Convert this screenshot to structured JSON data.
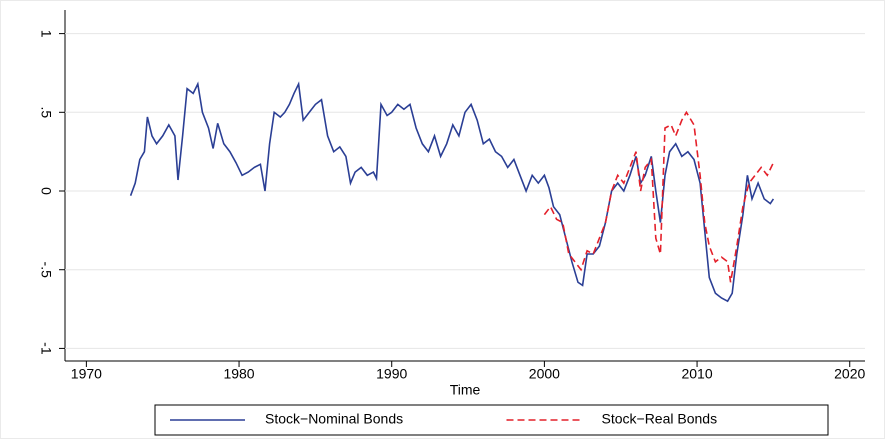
{
  "chart_data": {
    "type": "line",
    "x_label": "Time",
    "xlim": [
      1968.6,
      2021
    ],
    "xticks": [
      1970,
      1980,
      1990,
      2000,
      2010,
      2020
    ],
    "ylim": [
      -1.08,
      1.15
    ],
    "yticks": [
      {
        "value": -1,
        "label": "-1"
      },
      {
        "value": -0.5,
        "label": "-.5"
      },
      0,
      {
        "value": 0.5,
        "label": ".5"
      },
      1
    ],
    "grid": true,
    "legend": "bottom",
    "series": [
      {
        "name": "Stock−Nominal Bonds",
        "color": "#2b3f95",
        "dash": "solid",
        "x": [
          1972.9,
          1973.2,
          1973.5,
          1973.8,
          1974.0,
          1974.3,
          1974.6,
          1975.0,
          1975.4,
          1975.8,
          1976.0,
          1976.3,
          1976.6,
          1977.0,
          1977.3,
          1977.6,
          1978.0,
          1978.3,
          1978.6,
          1979.0,
          1979.4,
          1979.8,
          1980.2,
          1980.6,
          1981.0,
          1981.4,
          1981.7,
          1982.0,
          1982.3,
          1982.7,
          1983.0,
          1983.3,
          1983.6,
          1983.9,
          1984.2,
          1984.6,
          1985.0,
          1985.4,
          1985.8,
          1986.2,
          1986.6,
          1987.0,
          1987.3,
          1987.6,
          1988.0,
          1988.4,
          1988.8,
          1989.0,
          1989.3,
          1989.7,
          1990.0,
          1990.4,
          1990.8,
          1991.2,
          1991.6,
          1992.0,
          1992.4,
          1992.8,
          1993.2,
          1993.6,
          1994.0,
          1994.4,
          1994.8,
          1995.2,
          1995.6,
          1996.0,
          1996.4,
          1996.8,
          1997.2,
          1997.6,
          1998.0,
          1998.4,
          1998.8,
          1999.2,
          1999.6,
          2000.0,
          2000.3,
          2000.6,
          2001.0,
          2001.4,
          2001.8,
          2002.2,
          2002.5,
          2002.8,
          2003.2,
          2003.6,
          2004.0,
          2004.4,
          2004.8,
          2005.2,
          2005.6,
          2006.0,
          2006.3,
          2006.6,
          2007.0,
          2007.3,
          2007.6,
          2007.9,
          2008.2,
          2008.6,
          2009.0,
          2009.4,
          2009.8,
          2010.2,
          2010.5,
          2010.8,
          2011.2,
          2011.6,
          2012.0,
          2012.3,
          2012.6,
          2013.0,
          2013.3,
          2013.6,
          2014.0,
          2014.4,
          2014.8,
          2015.0
        ],
        "values": [
          -0.03,
          0.05,
          0.2,
          0.25,
          0.47,
          0.35,
          0.3,
          0.35,
          0.42,
          0.35,
          0.07,
          0.35,
          0.65,
          0.62,
          0.68,
          0.5,
          0.4,
          0.27,
          0.43,
          0.3,
          0.25,
          0.18,
          0.1,
          0.12,
          0.15,
          0.17,
          0.0,
          0.3,
          0.5,
          0.47,
          0.5,
          0.55,
          0.62,
          0.68,
          0.45,
          0.5,
          0.55,
          0.58,
          0.35,
          0.25,
          0.28,
          0.22,
          0.05,
          0.12,
          0.15,
          0.1,
          0.12,
          0.08,
          0.55,
          0.48,
          0.5,
          0.55,
          0.52,
          0.55,
          0.4,
          0.3,
          0.25,
          0.35,
          0.22,
          0.3,
          0.42,
          0.35,
          0.5,
          0.55,
          0.45,
          0.3,
          0.33,
          0.25,
          0.22,
          0.15,
          0.2,
          0.1,
          0.0,
          0.1,
          0.05,
          0.1,
          0.02,
          -0.1,
          -0.15,
          -0.3,
          -0.45,
          -0.58,
          -0.6,
          -0.4,
          -0.4,
          -0.35,
          -0.2,
          0.0,
          0.05,
          0.0,
          0.1,
          0.22,
          0.05,
          0.1,
          0.22,
          0.0,
          -0.2,
          0.1,
          0.25,
          0.3,
          0.22,
          0.25,
          0.2,
          0.05,
          -0.25,
          -0.55,
          -0.65,
          -0.68,
          -0.7,
          -0.65,
          -0.4,
          -0.15,
          0.1,
          -0.05,
          0.05,
          -0.05,
          -0.08,
          -0.05
        ]
      },
      {
        "name": "Stock−Real Bonds",
        "color": "#e4202a",
        "dash": "dashed",
        "x": [
          2000.0,
          2000.4,
          2000.8,
          2001.2,
          2001.6,
          2002.0,
          2002.4,
          2002.8,
          2003.2,
          2003.6,
          2004.0,
          2004.4,
          2004.8,
          2005.2,
          2005.6,
          2006.0,
          2006.3,
          2006.6,
          2007.0,
          2007.3,
          2007.6,
          2007.9,
          2008.3,
          2008.6,
          2009.0,
          2009.3,
          2009.8,
          2010.2,
          2010.5,
          2010.8,
          2011.2,
          2011.6,
          2012.0,
          2012.2,
          2012.6,
          2013.0,
          2013.4,
          2013.8,
          2014.2,
          2014.6,
          2015.0
        ],
        "values": [
          -0.15,
          -0.1,
          -0.18,
          -0.2,
          -0.4,
          -0.45,
          -0.5,
          -0.38,
          -0.4,
          -0.3,
          -0.2,
          0.0,
          0.1,
          0.05,
          0.15,
          0.25,
          0.0,
          0.15,
          0.2,
          -0.3,
          -0.4,
          0.4,
          0.42,
          0.35,
          0.45,
          0.5,
          0.42,
          0.1,
          -0.2,
          -0.35,
          -0.45,
          -0.42,
          -0.45,
          -0.58,
          -0.35,
          -0.1,
          0.05,
          0.1,
          0.15,
          0.1,
          0.18
        ]
      }
    ]
  }
}
